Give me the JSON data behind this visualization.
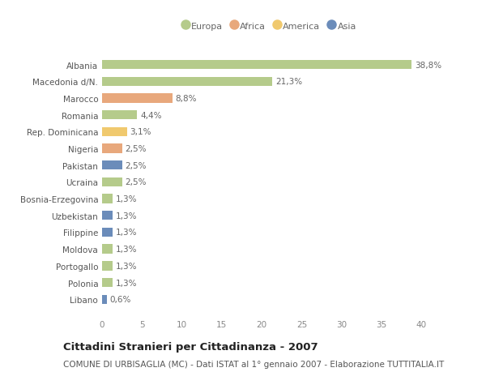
{
  "categories": [
    "Albania",
    "Macedonia d/N.",
    "Marocco",
    "Romania",
    "Rep. Dominicana",
    "Nigeria",
    "Pakistan",
    "Ucraina",
    "Bosnia-Erzegovina",
    "Uzbekistan",
    "Filippine",
    "Moldova",
    "Portogallo",
    "Polonia",
    "Libano"
  ],
  "values": [
    38.8,
    21.3,
    8.8,
    4.4,
    3.1,
    2.5,
    2.5,
    2.5,
    1.3,
    1.3,
    1.3,
    1.3,
    1.3,
    1.3,
    0.6
  ],
  "labels": [
    "38,8%",
    "21,3%",
    "8,8%",
    "4,4%",
    "3,1%",
    "2,5%",
    "2,5%",
    "2,5%",
    "1,3%",
    "1,3%",
    "1,3%",
    "1,3%",
    "1,3%",
    "1,3%",
    "0,6%"
  ],
  "colors": [
    "#b5cb8b",
    "#b5cb8b",
    "#e8a87c",
    "#b5cb8b",
    "#f0c96e",
    "#e8a87c",
    "#6b8cba",
    "#b5cb8b",
    "#b5cb8b",
    "#6b8cba",
    "#6b8cba",
    "#b5cb8b",
    "#b5cb8b",
    "#b5cb8b",
    "#6b8cba"
  ],
  "legend": [
    {
      "label": "Europa",
      "color": "#b5cb8b"
    },
    {
      "label": "Africa",
      "color": "#e8a87c"
    },
    {
      "label": "America",
      "color": "#f0c96e"
    },
    {
      "label": "Asia",
      "color": "#6b8cba"
    }
  ],
  "title": "Cittadini Stranieri per Cittadinanza - 2007",
  "subtitle": "COMUNE DI URBISAGLIA (MC) - Dati ISTAT al 1° gennaio 2007 - Elaborazione TUTTITALIA.IT",
  "xlim": [
    0,
    42
  ],
  "xticks": [
    0,
    5,
    10,
    15,
    20,
    25,
    30,
    35,
    40
  ],
  "background_color": "#ffffff",
  "fig_background_color": "#ffffff",
  "bar_height": 0.55,
  "label_fontsize": 7.5,
  "title_fontsize": 9.5,
  "subtitle_fontsize": 7.5,
  "ytick_fontsize": 7.5,
  "xtick_fontsize": 7.5
}
